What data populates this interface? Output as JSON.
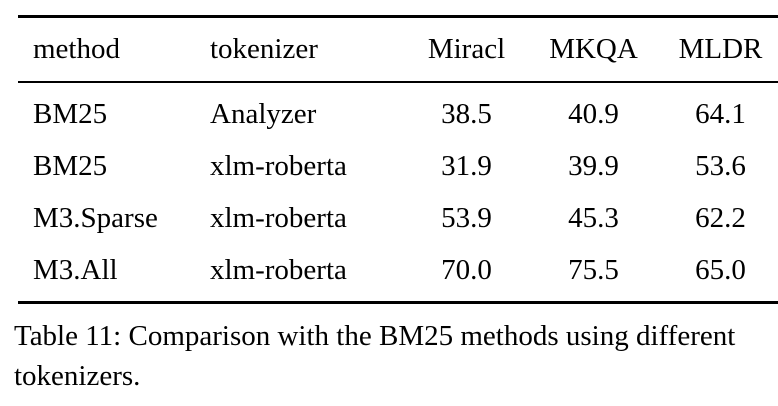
{
  "table": {
    "columns": [
      "method",
      "tokenizer",
      "Miracl",
      "MKQA",
      "MLDR"
    ],
    "rows": [
      [
        "BM25",
        "Analyzer",
        "38.5",
        "40.9",
        "64.1"
      ],
      [
        "BM25",
        "xlm-roberta",
        "31.9",
        "39.9",
        "53.6"
      ],
      [
        "M3.Sparse",
        "xlm-roberta",
        "53.9",
        "45.3",
        "62.2"
      ],
      [
        "M3.All",
        "xlm-roberta",
        "70.0",
        "75.5",
        "65.0"
      ]
    ]
  },
  "caption": {
    "text": "Table 11: Comparison with the BM25 methods using different tokenizers."
  }
}
